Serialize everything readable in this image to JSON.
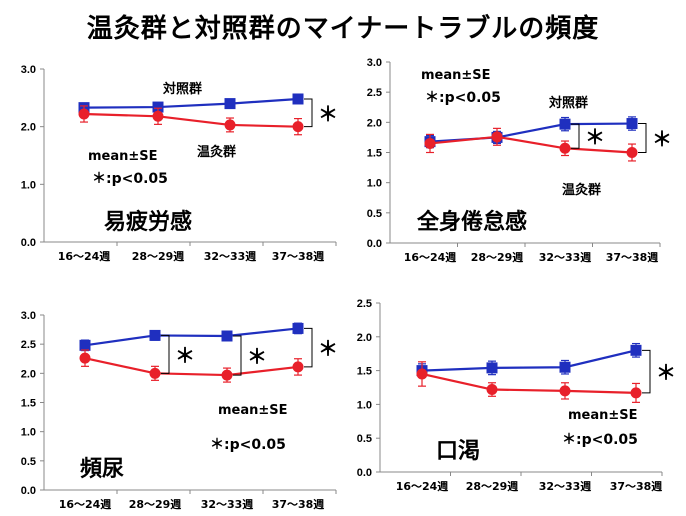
{
  "title": "温灸群と対照群のマイナートラブルの頻度",
  "chart_data": [
    {
      "type": "line",
      "title": "易疲労感",
      "categories": [
        "16〜24週",
        "28〜29週",
        "32〜33週",
        "37〜38週"
      ],
      "ylim": [
        0,
        3
      ],
      "yticks": [
        "0.0",
        "1.0",
        "2.0",
        "3.0"
      ],
      "series": [
        {
          "name": "対照群",
          "color": "#1f2fbf",
          "marker": "square",
          "values": [
            2.33,
            2.34,
            2.4,
            2.48
          ],
          "se": [
            0.07,
            0.07,
            0.07,
            0.07
          ]
        },
        {
          "name": "温灸群",
          "color": "#e8202a",
          "marker": "circle",
          "values": [
            2.22,
            2.18,
            2.03,
            2.0
          ],
          "se": [
            0.14,
            0.14,
            0.12,
            0.14
          ]
        }
      ],
      "note_stats": "mean±SE",
      "note_sig": "＊:p<0.05",
      "significance": [
        {
          "between": [
            3,
            3
          ],
          "label": "＊"
        }
      ]
    },
    {
      "type": "line",
      "title": "全身倦怠感",
      "categories": [
        "16〜24週",
        "28〜29週",
        "32〜33週",
        "37〜38週"
      ],
      "ylim": [
        0,
        3
      ],
      "yticks": [
        "0.0",
        "0.5",
        "1.0",
        "1.5",
        "2.0",
        "2.5",
        "3.0"
      ],
      "series": [
        {
          "name": "対照群",
          "color": "#1f2fbf",
          "marker": "square",
          "values": [
            1.68,
            1.75,
            1.97,
            1.98
          ],
          "se": [
            0.1,
            0.1,
            0.11,
            0.11
          ]
        },
        {
          "name": "温灸群",
          "color": "#e8202a",
          "marker": "circle",
          "values": [
            1.65,
            1.76,
            1.57,
            1.5
          ],
          "se": [
            0.15,
            0.14,
            0.12,
            0.14
          ]
        }
      ],
      "note_stats": "mean±SE",
      "note_sig": "＊:p<0.05",
      "significance": [
        {
          "between": [
            2,
            2
          ],
          "label": "＊"
        },
        {
          "between": [
            3,
            3
          ],
          "label": "＊"
        }
      ]
    },
    {
      "type": "line",
      "title": "頻尿",
      "categories": [
        "16〜24週",
        "28〜29週",
        "32〜33週",
        "37〜38週"
      ],
      "ylim": [
        0,
        3
      ],
      "yticks": [
        "0.0",
        "0.5",
        "1.0",
        "1.5",
        "2.0",
        "2.5",
        "3.0"
      ],
      "series": [
        {
          "name": "対照群",
          "color": "#1f2fbf",
          "marker": "square",
          "values": [
            2.48,
            2.65,
            2.64,
            2.77
          ],
          "se": [
            0.09,
            0.08,
            0.08,
            0.09
          ]
        },
        {
          "name": "温灸群",
          "color": "#e8202a",
          "marker": "circle",
          "values": [
            2.26,
            2.0,
            1.97,
            2.11
          ],
          "se": [
            0.14,
            0.12,
            0.12,
            0.14
          ]
        }
      ],
      "note_stats": "mean±SE",
      "note_sig": "＊:p<0.05",
      "significance": [
        {
          "between": [
            1,
            1
          ],
          "label": "＊"
        },
        {
          "between": [
            2,
            2
          ],
          "label": "＊"
        },
        {
          "between": [
            3,
            3
          ],
          "label": "＊"
        }
      ]
    },
    {
      "type": "line",
      "title": "口渇",
      "categories": [
        "16〜24週",
        "28〜29週",
        "32〜33週",
        "37〜38週"
      ],
      "ylim": [
        0,
        2.5
      ],
      "yticks": [
        "0.0",
        "0.5",
        "1.0",
        "1.5",
        "2.0",
        "2.5"
      ],
      "series": [
        {
          "name": "対照群",
          "color": "#1f2fbf",
          "marker": "square",
          "values": [
            1.5,
            1.54,
            1.55,
            1.8
          ],
          "se": [
            0.1,
            0.1,
            0.1,
            0.1
          ]
        },
        {
          "name": "温灸群",
          "color": "#e8202a",
          "marker": "circle",
          "values": [
            1.45,
            1.22,
            1.2,
            1.17
          ],
          "se": [
            0.18,
            0.1,
            0.12,
            0.14
          ]
        }
      ],
      "note_stats": "mean±SE",
      "note_sig": "＊:p<0.05",
      "significance": [
        {
          "between": [
            3,
            3
          ],
          "label": "＊"
        }
      ]
    }
  ]
}
